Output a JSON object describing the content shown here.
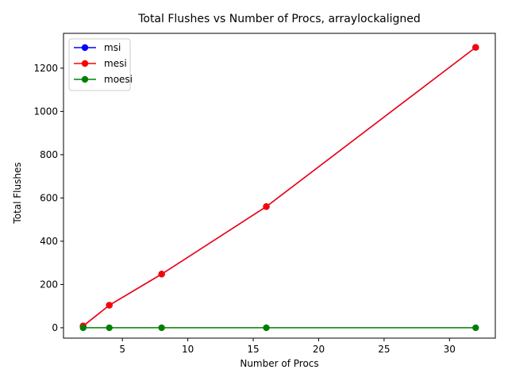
{
  "chart_data": {
    "type": "line",
    "title": "Total Flushes vs Number of Procs, arraylockaligned",
    "xlabel": "Number of Procs",
    "ylabel": "Total Flushes",
    "x": [
      2,
      4,
      8,
      16,
      32
    ],
    "xlim": [
      0.5,
      33.5
    ],
    "ylim": [
      -48,
      1361
    ],
    "xticks": [
      5,
      10,
      15,
      20,
      25,
      30
    ],
    "yticks": [
      0,
      200,
      400,
      600,
      800,
      1000,
      1200
    ],
    "grid": false,
    "legend_position": "top-left",
    "series": [
      {
        "name": "msi",
        "color": "#0000ff",
        "values": [
          8,
          104,
          248,
          560,
          1296
        ]
      },
      {
        "name": "mesi",
        "color": "#ff0000",
        "values": [
          8,
          104,
          248,
          560,
          1296
        ]
      },
      {
        "name": "moesi",
        "color": "#008000",
        "values": [
          0,
          0,
          0,
          0,
          0
        ]
      }
    ]
  }
}
